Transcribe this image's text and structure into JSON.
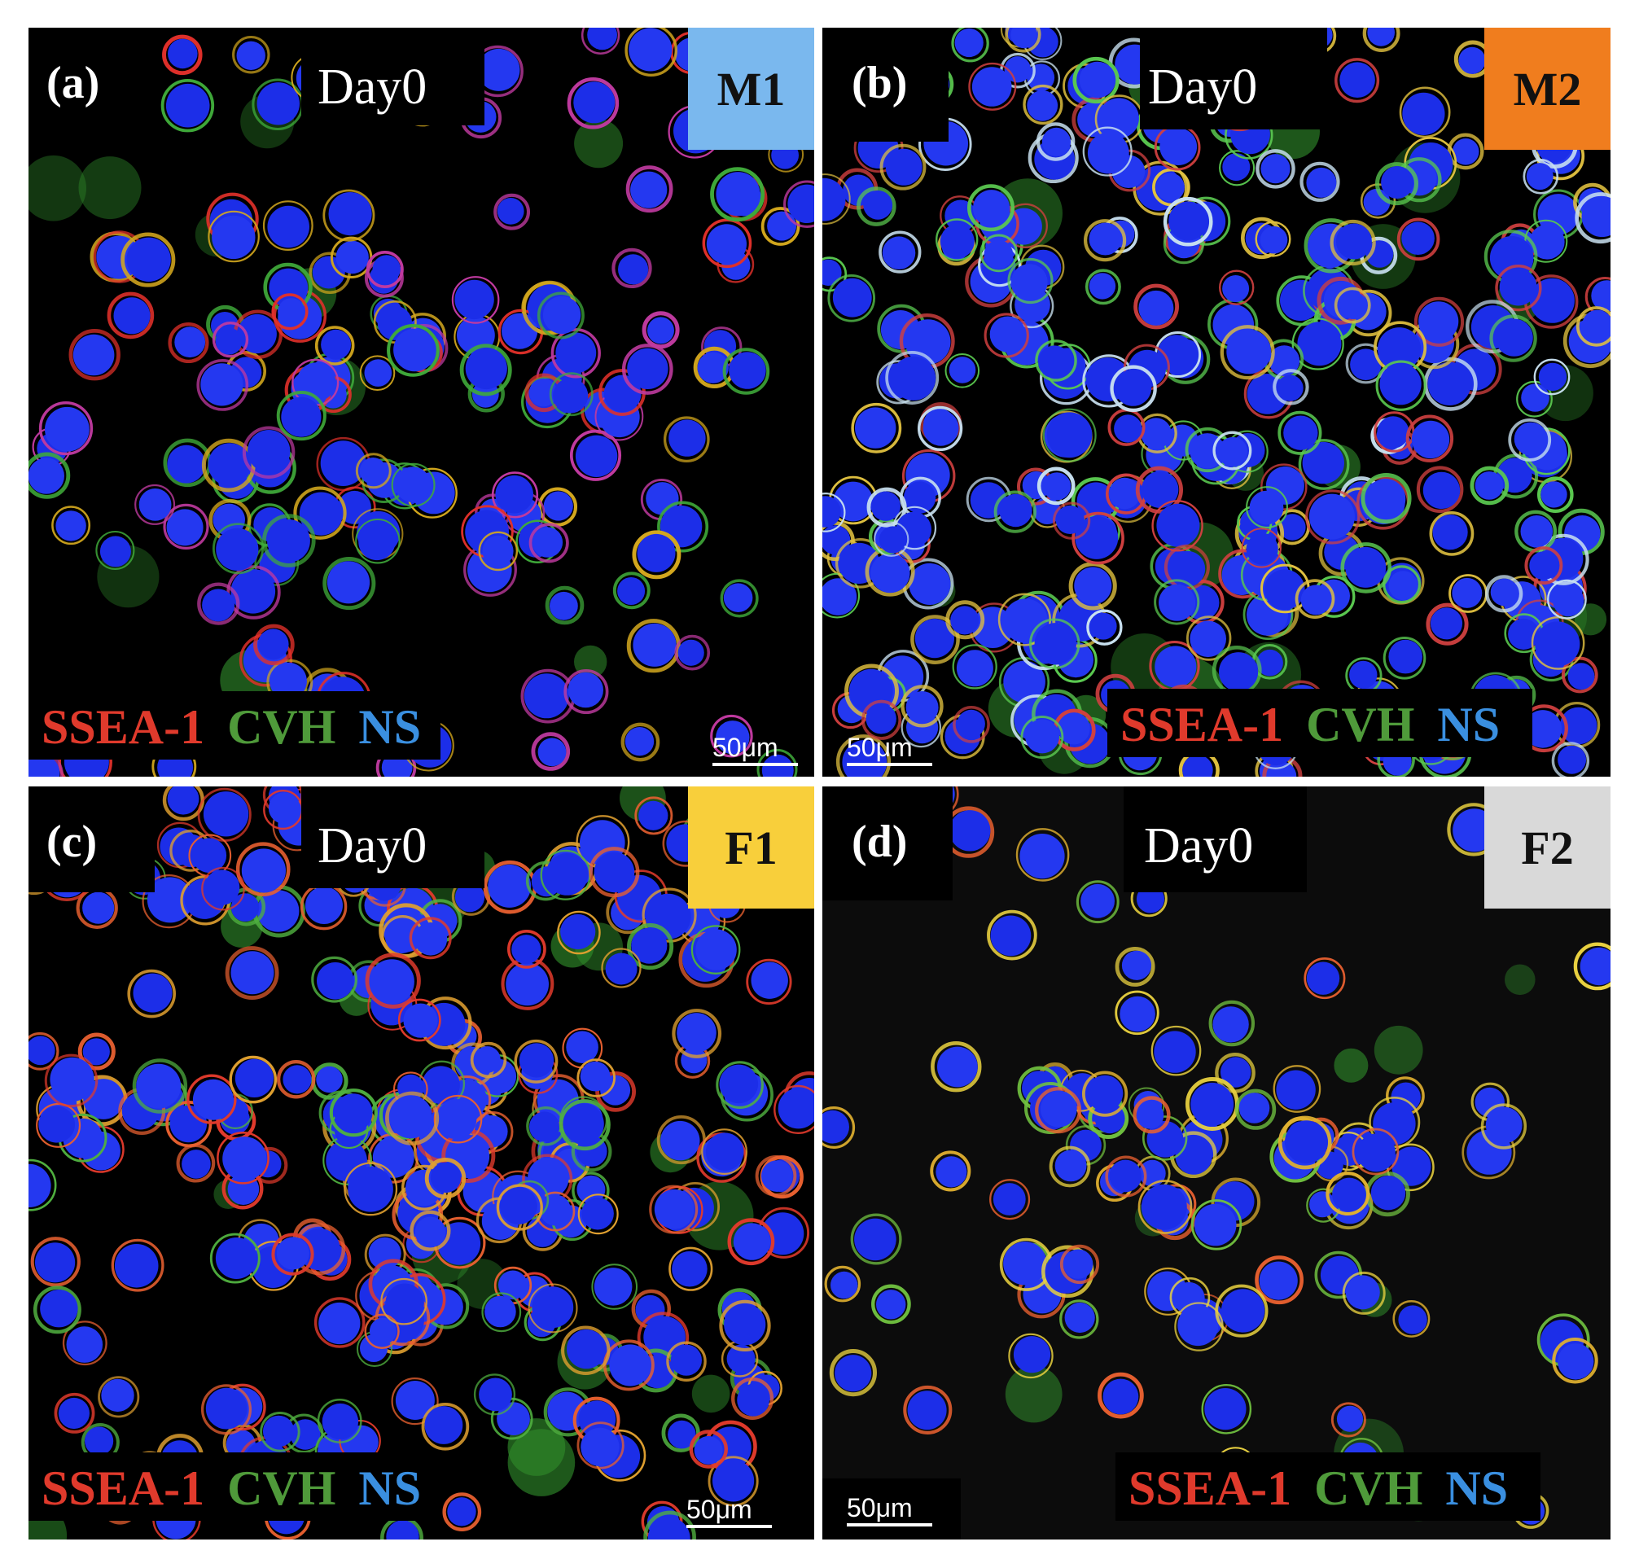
{
  "colors": {
    "ssea1": "#e03a2c",
    "cvh": "#4f9a3a",
    "ns": "#3a8fe0",
    "badge_m1": "#7ab8ee",
    "badge_m2": "#f07d1e",
    "badge_f1": "#f8cf3b",
    "badge_f2": "#d9d9d9"
  },
  "panels": [
    {
      "id": "a",
      "letter": "(a)",
      "day": "Day0",
      "badge": "M1",
      "stains": [
        "SSEA-1",
        "CVH",
        "NS"
      ],
      "scale": "50μm"
    },
    {
      "id": "b",
      "letter": "(b)",
      "day": "Day0",
      "badge": "M2",
      "stains": [
        "SSEA-1",
        "CVH",
        "NS"
      ],
      "scale": "50μm"
    },
    {
      "id": "c",
      "letter": "(c)",
      "day": "Day0",
      "badge": "F1",
      "stains": [
        "SSEA-1",
        "CVH",
        "NS"
      ],
      "scale": "50μm"
    },
    {
      "id": "d",
      "letter": "(d)",
      "day": "Day0",
      "badge": "F2",
      "stains": [
        "SSEA-1",
        "CVH",
        "NS"
      ],
      "scale": "50μm"
    }
  ]
}
